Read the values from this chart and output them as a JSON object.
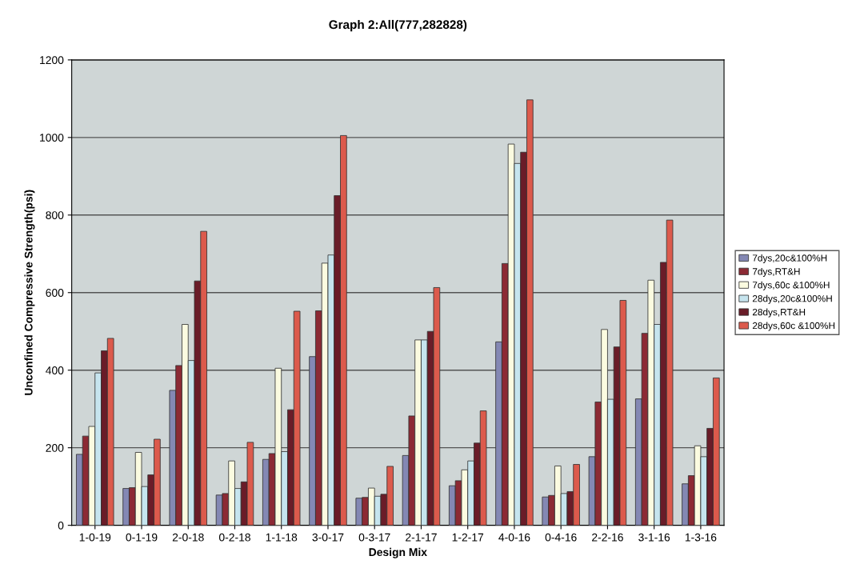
{
  "chart_data": {
    "type": "bar",
    "title": "Graph 2:All(777,282828)",
    "xlabel": "Design Mix",
    "ylabel": "Unconfined Compressive Strength(psi)",
    "categories": [
      "1-0-19",
      "0-1-19",
      "2-0-18",
      "0-2-18",
      "1-1-18",
      "3-0-17",
      "0-3-17",
      "2-1-17",
      "1-2-17",
      "4-0-16",
      "0-4-16",
      "2-2-16",
      "3-1-16",
      "1-3-16"
    ],
    "series": [
      {
        "name": "7dys,20c&100%H",
        "color": "#8488b4",
        "values": [
          183,
          95,
          348,
          78,
          170,
          435,
          70,
          180,
          102,
          473,
          73,
          177,
          326,
          107
        ]
      },
      {
        "name": "7dys,RT&H",
        "color": "#8c2a34",
        "values": [
          230,
          97,
          412,
          82,
          185,
          553,
          72,
          282,
          115,
          675,
          77,
          318,
          495,
          128
        ]
      },
      {
        "name": "7dys,60c &100%H",
        "color": "#fbfbe0",
        "values": [
          255,
          188,
          518,
          166,
          405,
          676,
          96,
          478,
          143,
          983,
          153,
          505,
          632,
          205
        ]
      },
      {
        "name": "28dys,20c&100%H",
        "color": "#c6e4ee",
        "values": [
          393,
          100,
          425,
          95,
          190,
          697,
          75,
          478,
          166,
          933,
          82,
          325,
          518,
          177
        ]
      },
      {
        "name": "28dys,RT&H",
        "color": "#6a1c28",
        "values": [
          450,
          130,
          630,
          112,
          298,
          850,
          80,
          500,
          212,
          962,
          87,
          460,
          678,
          250
        ]
      },
      {
        "name": "28dys,60c &100%H",
        "color": "#dc5a4c",
        "values": [
          482,
          222,
          758,
          214,
          552,
          1005,
          152,
          613,
          295,
          1097,
          157,
          580,
          787,
          380
        ]
      }
    ],
    "ylim": [
      0,
      1200
    ],
    "yticks": [
      0,
      200,
      400,
      600,
      800,
      1000,
      1200
    ],
    "grid": "y",
    "legend": "right"
  }
}
